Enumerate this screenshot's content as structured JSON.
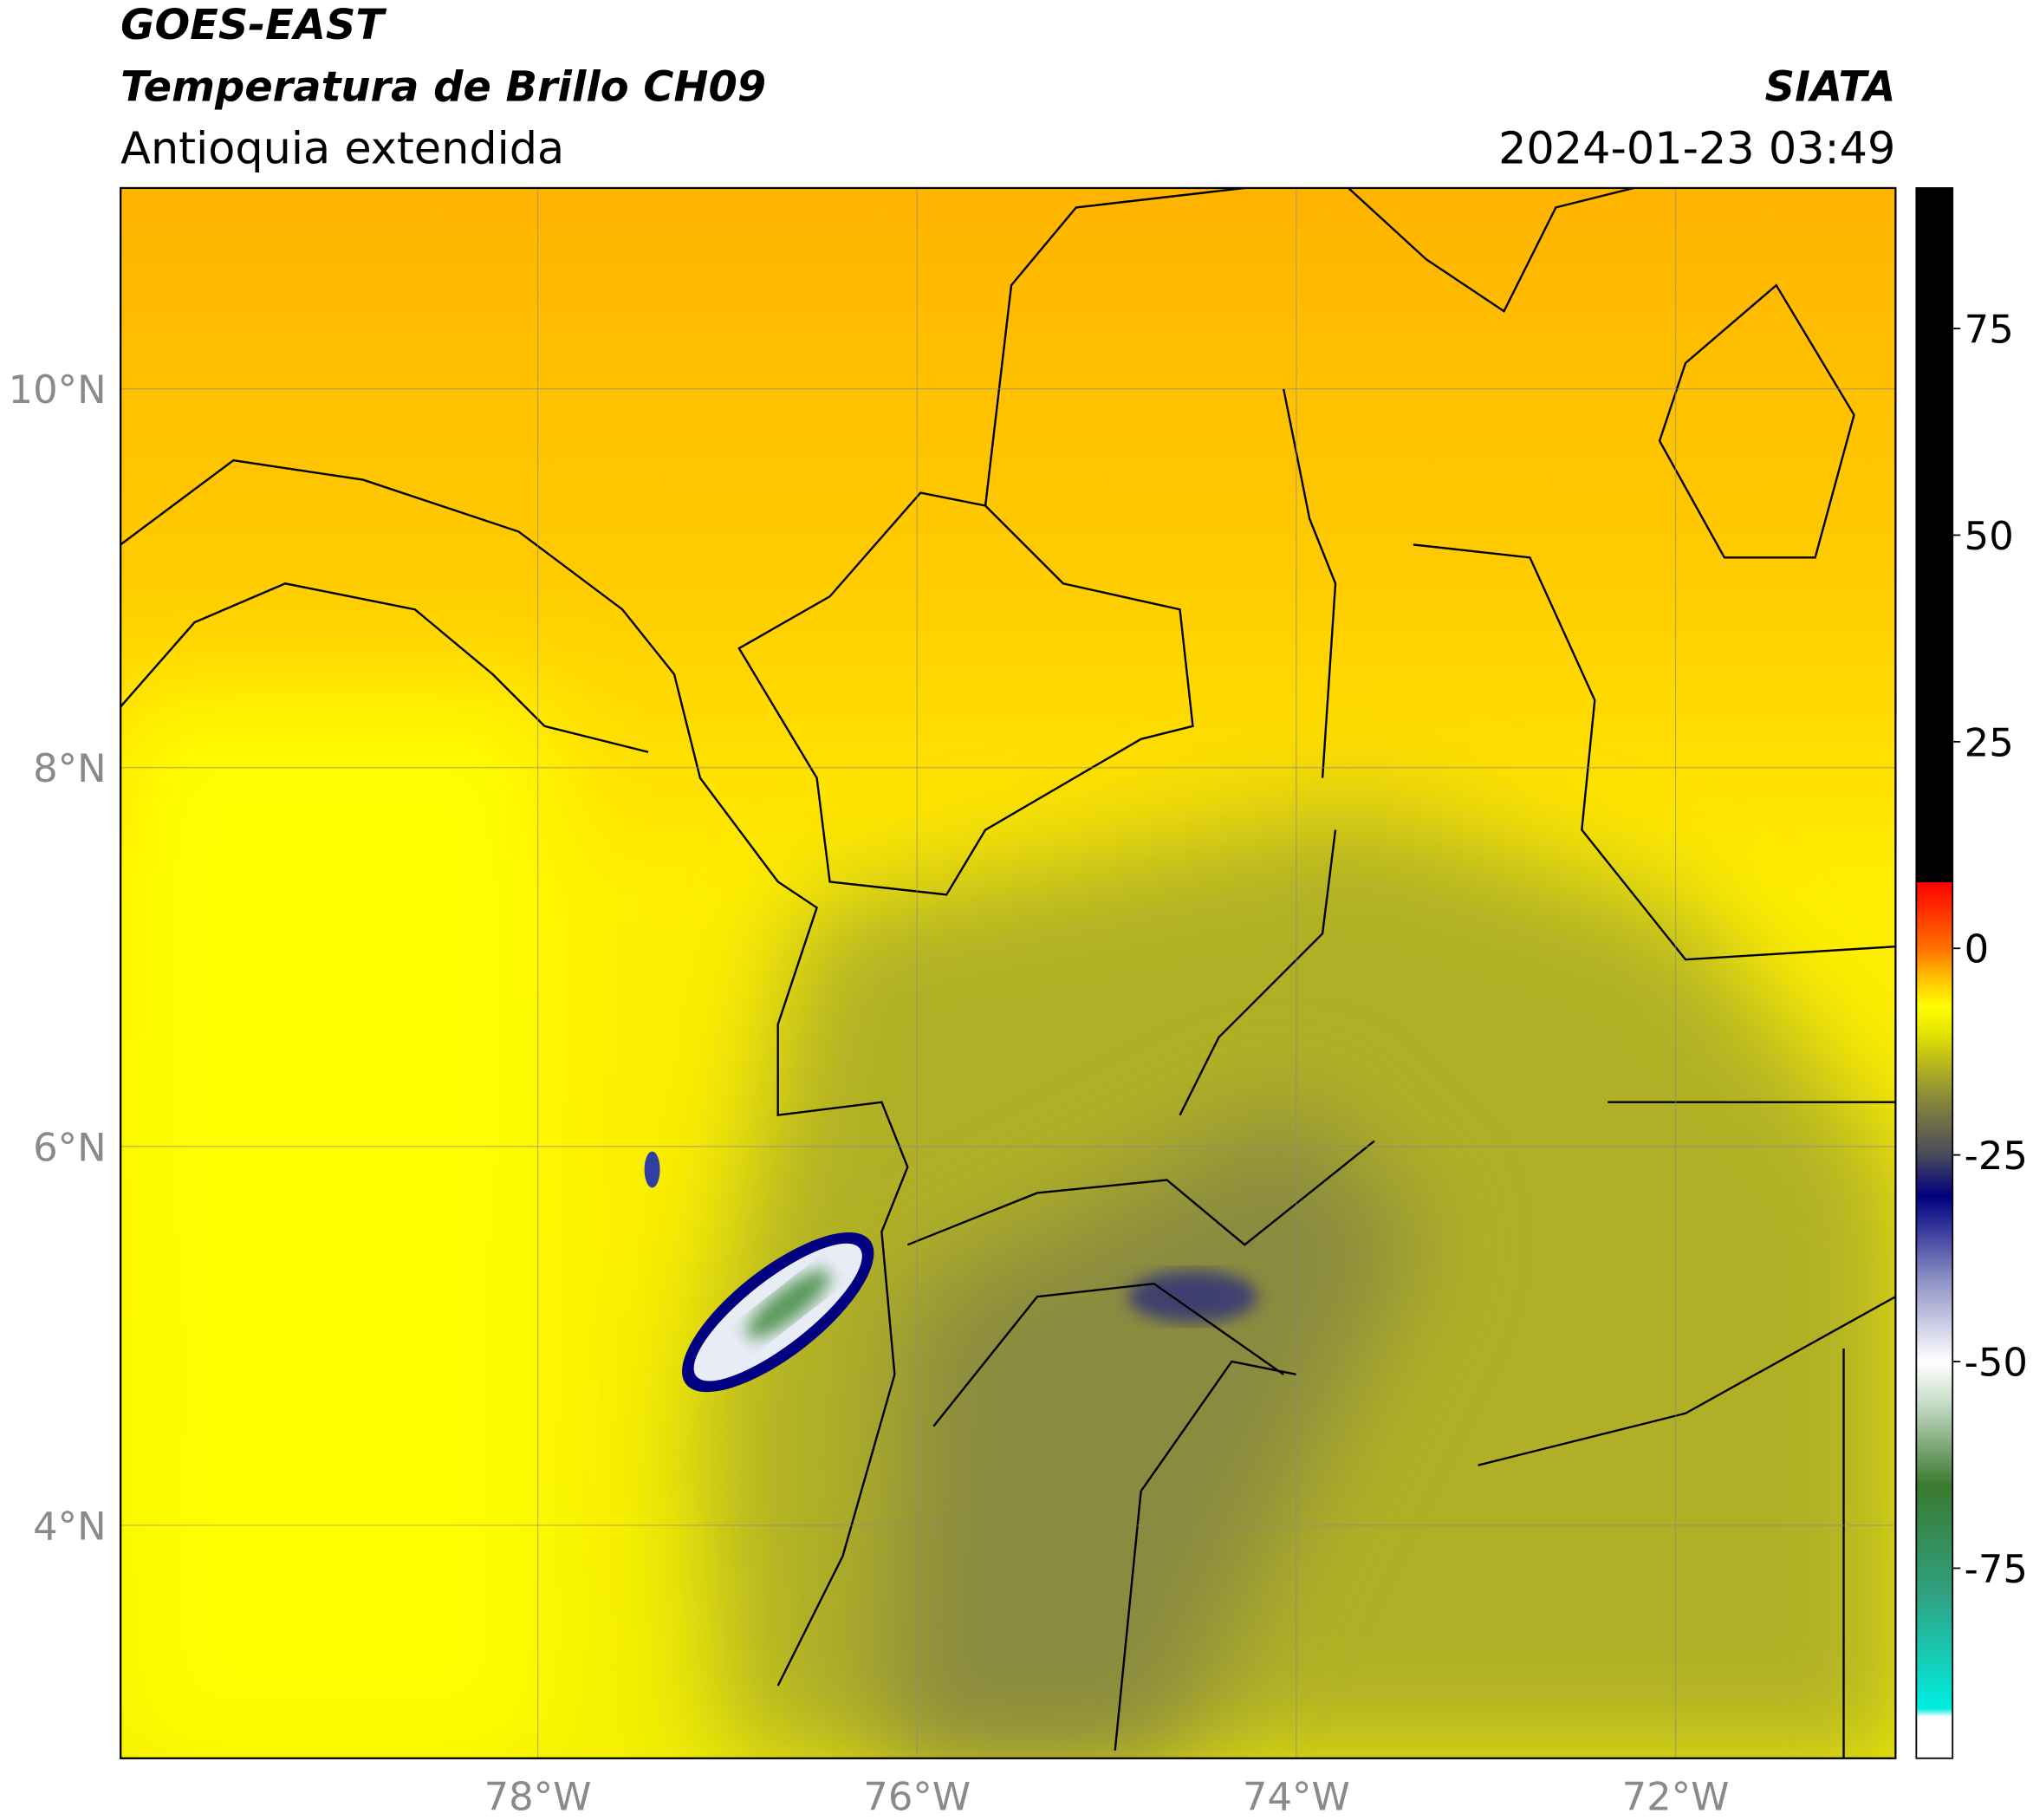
{
  "header": {
    "line1": "GOES-EAST",
    "line2": "Temperatura de Brillo CH09",
    "line3": "Antioquia extendida",
    "org": "SIATA",
    "datetime": "2024-01-23 03:49"
  },
  "map": {
    "xlim": [
      -80.2,
      -70.84
    ],
    "ylim": [
      2.77,
      11.06
    ],
    "grid": true,
    "xticks": [
      {
        "value": -78,
        "label": "78°W"
      },
      {
        "value": -76,
        "label": "76°W"
      },
      {
        "value": -74,
        "label": "74°W"
      },
      {
        "value": -72,
        "label": "72°W"
      }
    ],
    "yticks": [
      {
        "value": 4,
        "label": "4°N"
      },
      {
        "value": 6,
        "label": "6°N"
      },
      {
        "value": 8,
        "label": "8°N"
      },
      {
        "value": 10,
        "label": "10°N"
      }
    ]
  },
  "colorbar": {
    "ylim": [
      -98,
      92
    ],
    "yticks": [
      -75,
      -50,
      -25,
      0,
      25,
      50,
      75
    ],
    "colormap": [
      {
        "value": -98,
        "color": "#ffffff"
      },
      {
        "value": -93,
        "color": "#ffffff"
      },
      {
        "value": -92,
        "color": "#00eee0"
      },
      {
        "value": -78,
        "color": "#30a080"
      },
      {
        "value": -65,
        "color": "#3a7a2e"
      },
      {
        "value": -55,
        "color": "#c8dcc8"
      },
      {
        "value": -50,
        "color": "#ffffff"
      },
      {
        "value": -40,
        "color": "#8c90c4"
      },
      {
        "value": -30,
        "color": "#000080"
      },
      {
        "value": -25,
        "color": "#4a4a5a"
      },
      {
        "value": -18,
        "color": "#8a8a3a"
      },
      {
        "value": -10,
        "color": "#e6e600"
      },
      {
        "value": -7,
        "color": "#ffff00"
      },
      {
        "value": -3,
        "color": "#ffb400"
      },
      {
        "value": 0,
        "color": "#ff7000"
      },
      {
        "value": 8,
        "color": "#ff0000"
      },
      {
        "value": 8.01,
        "color": "#000000"
      },
      {
        "value": 92,
        "color": "#000000"
      }
    ]
  }
}
